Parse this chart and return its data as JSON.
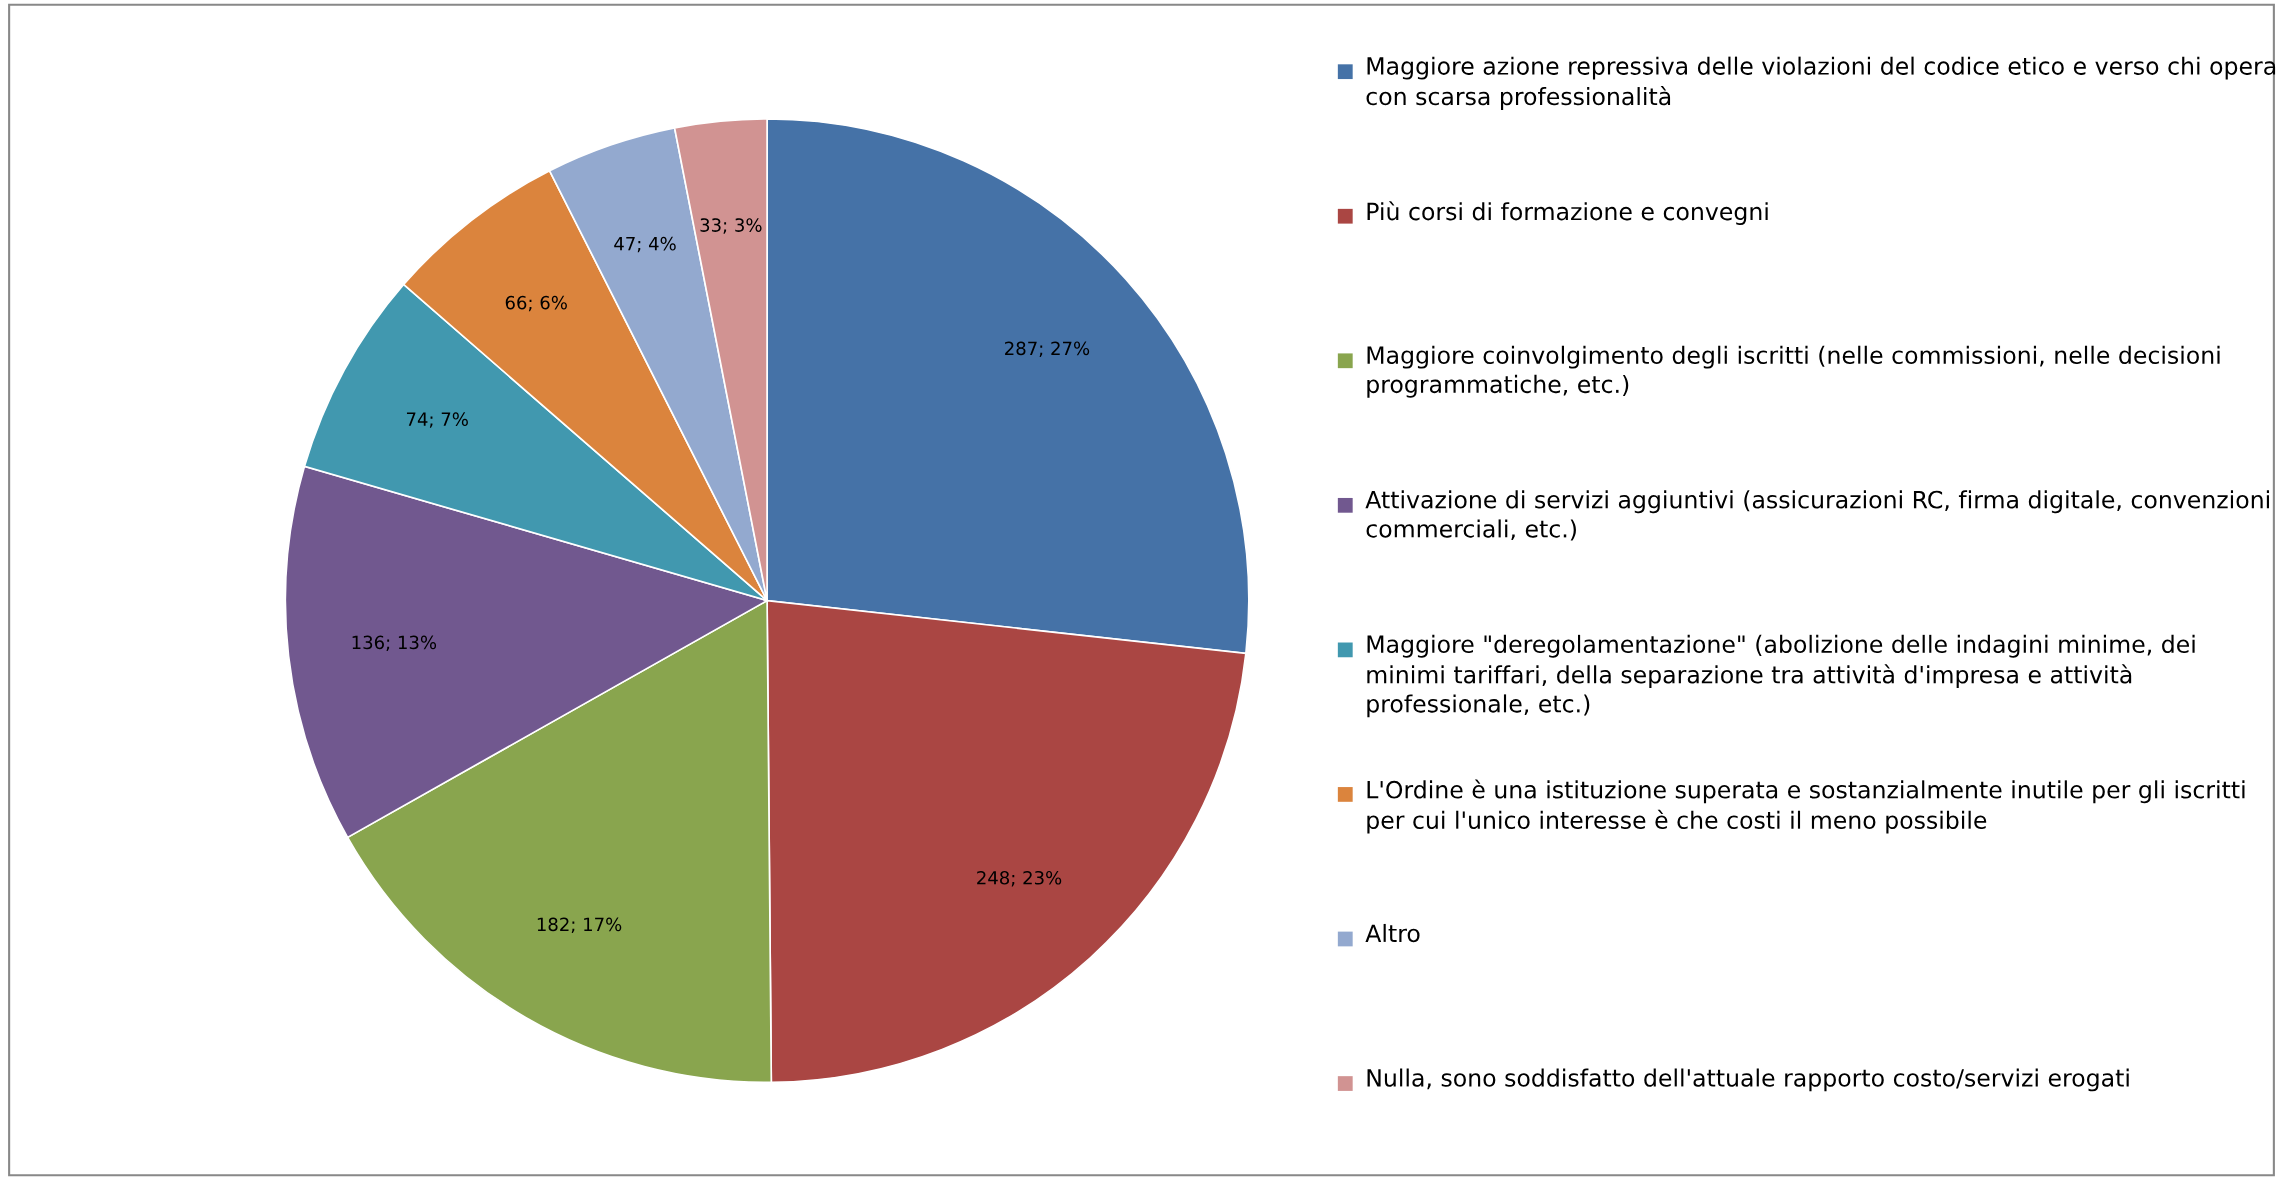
{
  "chart_data": {
    "type": "pie",
    "categories": [
      "Maggiore azione repressiva delle violazioni del codice etico e verso chi opera con scarsa professionalità",
      "Più corsi di formazione e convegni",
      "Maggiore coinvolgimento degli iscritti (nelle commissioni, nelle decisioni programmatiche, etc.)",
      "Attivazione di servizi aggiuntivi (assicurazioni RC, firma digitale, convenzioni commerciali, etc.)",
      "Maggiore \"deregolamentazione\" (abolizione delle indagini minime, dei minimi tariffari, della separazione tra attività d'impresa e attività professionale, etc.)",
      "L'Ordine è una istituzione superata e sostanzialmente inutile per gli iscritti per cui l'unico interesse è che costi il meno possibile",
      "Altro",
      "Nulla, sono soddisfatto dell'attuale rapporto costo/servizi erogati"
    ],
    "values": [
      287,
      248,
      182,
      136,
      74,
      66,
      47,
      33
    ],
    "value_labels": [
      "287; 27%",
      "248; 23%",
      "182; 17%",
      "136; 13%",
      "74; 7%",
      "66; 6%",
      "47; 4%",
      "33; 3%"
    ],
    "colors": [
      "#4572a7",
      "#aa4643",
      "#89a54e",
      "#71588f",
      "#4198af",
      "#db843d",
      "#93a9cf",
      "#d19392"
    ],
    "legend": "right"
  }
}
